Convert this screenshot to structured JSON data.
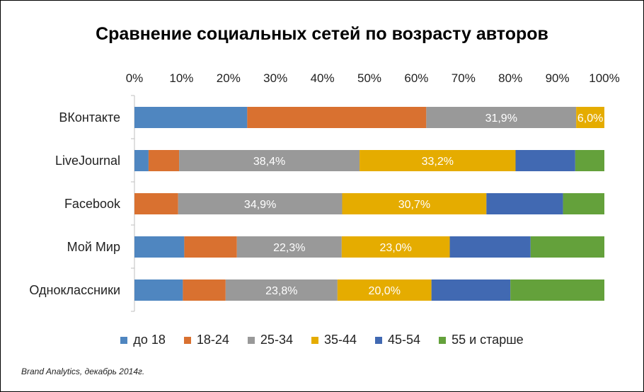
{
  "chart_data": {
    "type": "bar",
    "orientation": "horizontal",
    "stacked": "percent",
    "title": "Сравнение социальных сетей по возрасту авторов",
    "categories": [
      "ВКонтакте",
      "LiveJournal",
      "Facebook",
      "Мой Мир",
      "Одноклассники"
    ],
    "xlim": [
      0,
      100
    ],
    "ticks": [
      "0%",
      "10%",
      "20%",
      "30%",
      "40%",
      "50%",
      "60%",
      "70%",
      "80%",
      "90%",
      "100%"
    ],
    "legend_position": "bottom",
    "series": [
      {
        "name": "до 18",
        "color": "#4f86c0",
        "values": [
          24.0,
          3.0,
          0.0,
          10.6,
          10.3
        ],
        "labels": [
          "",
          "",
          "",
          "",
          ""
        ]
      },
      {
        "name": "18-24",
        "color": "#d97130",
        "values": [
          38.1,
          6.5,
          9.3,
          11.2,
          9.1
        ],
        "labels": [
          "",
          "",
          "",
          "",
          ""
        ]
      },
      {
        "name": "25-34",
        "color": "#999999",
        "values": [
          31.9,
          38.4,
          34.9,
          22.3,
          23.8
        ],
        "labels": [
          "31,9%",
          "38,4%",
          "34,9%",
          "22,3%",
          "23,8%"
        ]
      },
      {
        "name": "35-44",
        "color": "#e5ac00",
        "values": [
          6.0,
          33.2,
          30.7,
          23.0,
          20.0
        ],
        "labels": [
          "6,0%",
          "33,2%",
          "30,7%",
          "23,0%",
          "20,0%"
        ]
      },
      {
        "name": "45-54",
        "color": "#4169b2",
        "values": [
          0.0,
          12.7,
          16.3,
          17.2,
          16.8
        ],
        "labels": [
          "",
          "",
          "",
          "",
          ""
        ]
      },
      {
        "name": "55 и старше",
        "color": "#64a13b",
        "values": [
          0.0,
          6.2,
          8.8,
          15.7,
          20.0
        ],
        "labels": [
          "",
          "",
          "",
          "",
          ""
        ]
      }
    ]
  },
  "source": "Brand Analytics, декабрь 2014г."
}
